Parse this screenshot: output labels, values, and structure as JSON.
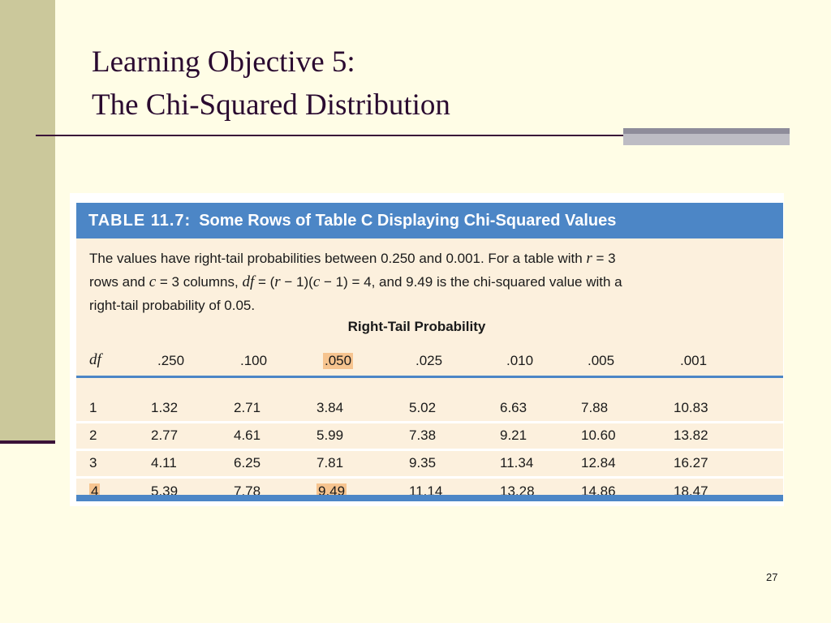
{
  "slide": {
    "title_line1": "Learning Objective 5:",
    "title_line2": "The Chi-Squared Distribution",
    "page_number": "27"
  },
  "table": {
    "number_label": "TABLE 11.7:",
    "title": "Some Rows of Table C Displaying Chi-Squared Values",
    "caption": {
      "part1": "The values have right-tail probabilities between 0.250 and 0.001. For a table with ",
      "r": "r",
      "part2": " = 3",
      "part3": "rows and ",
      "c": "c",
      "part4": " = 3 columns, ",
      "df": "df",
      "part5": " = (",
      "r2": "r",
      "part6": " − 1)(",
      "c2": "c",
      "part7": " − 1) = 4, and 9.49 is the chi-squared value with a",
      "part8": "right-tail probability of 0.05."
    },
    "super_header": "Right-Tail Probability",
    "columns": [
      "df",
      ".250",
      ".100",
      ".050",
      ".025",
      ".010",
      ".005",
      ".001"
    ],
    "highlight_column": ".050",
    "rows": [
      [
        "1",
        "1.32",
        "2.71",
        "3.84",
        "5.02",
        "6.63",
        "7.88",
        "10.83"
      ],
      [
        "2",
        "2.77",
        "4.61",
        "5.99",
        "7.38",
        "9.21",
        "10.60",
        "13.82"
      ],
      [
        "3",
        "4.11",
        "6.25",
        "7.81",
        "9.35",
        "11.34",
        "12.84",
        "16.27"
      ],
      [
        "4",
        "5.39",
        "7.78",
        "9.49",
        "11.14",
        "13.28",
        "14.86",
        "18.47"
      ]
    ],
    "highlight_cells": [
      [
        3,
        0
      ],
      [
        3,
        3
      ]
    ],
    "colors": {
      "header_blue": "#4C86C6",
      "table_bg": "#FCF0DD",
      "highlight": "#F6C48F"
    }
  }
}
